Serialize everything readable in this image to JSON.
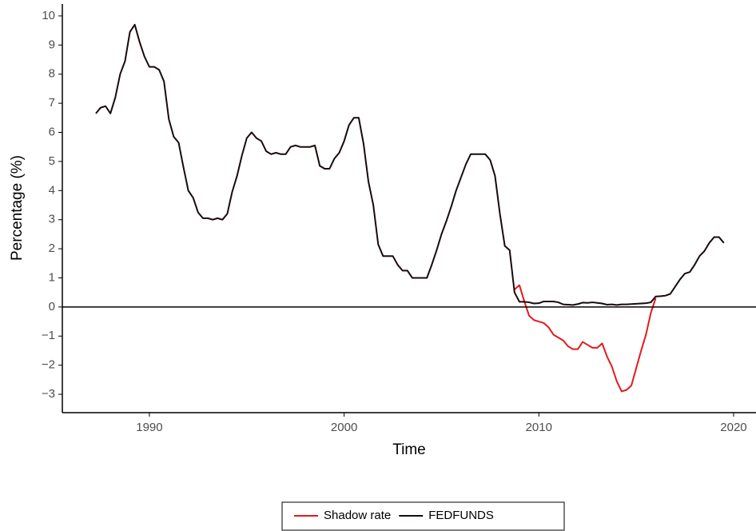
{
  "chart_data": {
    "type": "line",
    "x_label": "Time",
    "y_label": "Percentage (%)",
    "x": [
      1987.25,
      1987.5,
      1987.75,
      1988,
      1988.25,
      1988.5,
      1988.75,
      1989,
      1989.25,
      1989.5,
      1989.75,
      1990,
      1990.25,
      1990.5,
      1990.75,
      1991,
      1991.25,
      1991.5,
      1991.75,
      1992,
      1992.25,
      1992.5,
      1992.75,
      1993,
      1993.25,
      1993.5,
      1993.75,
      1994,
      1994.25,
      1994.5,
      1994.75,
      1995,
      1995.25,
      1995.5,
      1995.75,
      1996,
      1996.25,
      1996.5,
      1996.75,
      1997,
      1997.25,
      1997.5,
      1997.75,
      1998,
      1998.25,
      1998.5,
      1998.75,
      1999,
      1999.25,
      1999.5,
      1999.75,
      2000,
      2000.25,
      2000.5,
      2000.75,
      2001,
      2001.25,
      2001.5,
      2001.75,
      2002,
      2002.25,
      2002.5,
      2002.75,
      2003,
      2003.25,
      2003.5,
      2003.75,
      2004,
      2004.25,
      2004.5,
      2004.75,
      2005,
      2005.25,
      2005.5,
      2005.75,
      2006,
      2006.25,
      2006.5,
      2006.75,
      2007,
      2007.25,
      2007.5,
      2007.75,
      2008,
      2008.25,
      2008.5,
      2008.75,
      2009,
      2009.25,
      2009.5,
      2009.75,
      2010,
      2010.25,
      2010.5,
      2010.75,
      2011,
      2011.25,
      2011.5,
      2011.75,
      2012,
      2012.25,
      2012.5,
      2012.75,
      2013,
      2013.25,
      2013.5,
      2013.75,
      2014,
      2014.25,
      2014.5,
      2014.75,
      2015,
      2015.25,
      2015.5,
      2015.75,
      2016,
      2016.25,
      2016.5,
      2016.75,
      2017,
      2017.25,
      2017.5,
      2017.75,
      2018,
      2018.25,
      2018.5,
      2018.75,
      2019,
      2019.25,
      2019.5
    ],
    "series": [
      {
        "name": "Shadow rate",
        "color": "#e41a1c",
        "values": [
          null,
          null,
          null,
          null,
          null,
          null,
          null,
          null,
          null,
          null,
          null,
          null,
          null,
          null,
          null,
          null,
          null,
          null,
          null,
          null,
          null,
          null,
          null,
          null,
          null,
          null,
          null,
          null,
          null,
          null,
          null,
          null,
          null,
          null,
          null,
          null,
          null,
          null,
          null,
          null,
          null,
          null,
          null,
          null,
          null,
          null,
          null,
          null,
          null,
          null,
          null,
          null,
          null,
          null,
          null,
          null,
          null,
          null,
          null,
          null,
          null,
          null,
          null,
          null,
          null,
          null,
          null,
          null,
          null,
          null,
          null,
          null,
          null,
          null,
          null,
          null,
          null,
          null,
          null,
          null,
          null,
          null,
          null,
          null,
          null,
          null,
          0.6,
          0.75,
          0.2,
          -0.3,
          -0.45,
          -0.5,
          -0.55,
          -0.7,
          -0.95,
          -1.05,
          -1.15,
          -1.35,
          -1.45,
          -1.45,
          -1.2,
          -1.3,
          -1.4,
          -1.4,
          -1.25,
          -1.7,
          -2.05,
          -2.55,
          -2.9,
          -2.85,
          -2.7,
          -2.1,
          -1.5,
          -0.95,
          -0.2,
          0.3,
          null,
          null,
          null,
          null,
          null,
          null,
          null,
          null,
          null,
          null,
          null,
          null,
          null,
          null
        ]
      },
      {
        "name": "FEDFUNDS",
        "color": "#1a0a0a",
        "values": [
          6.65,
          6.85,
          6.9,
          6.65,
          7.2,
          8.0,
          8.45,
          9.45,
          9.7,
          9.1,
          8.6,
          8.25,
          8.25,
          8.15,
          7.75,
          6.45,
          5.85,
          5.65,
          4.8,
          4.0,
          3.75,
          3.25,
          3.05,
          3.05,
          3.0,
          3.05,
          3.0,
          3.2,
          3.95,
          4.5,
          5.2,
          5.8,
          6.0,
          5.8,
          5.7,
          5.35,
          5.25,
          5.3,
          5.25,
          5.25,
          5.5,
          5.55,
          5.5,
          5.5,
          5.5,
          5.55,
          4.85,
          4.75,
          4.75,
          5.1,
          5.3,
          5.7,
          6.25,
          6.5,
          6.5,
          5.6,
          4.3,
          3.5,
          2.15,
          1.75,
          1.75,
          1.75,
          1.45,
          1.25,
          1.25,
          1.0,
          1.0,
          1.0,
          1.0,
          1.45,
          1.95,
          2.5,
          2.95,
          3.45,
          4.0,
          4.45,
          4.9,
          5.25,
          5.25,
          5.25,
          5.25,
          5.05,
          4.5,
          3.2,
          2.1,
          1.95,
          0.5,
          0.18,
          0.18,
          0.16,
          0.12,
          0.13,
          0.19,
          0.19,
          0.19,
          0.16,
          0.09,
          0.08,
          0.07,
          0.1,
          0.15,
          0.14,
          0.16,
          0.14,
          0.12,
          0.08,
          0.09,
          0.07,
          0.09,
          0.09,
          0.1,
          0.11,
          0.12,
          0.13,
          0.16,
          0.36,
          0.37,
          0.39,
          0.45,
          0.7,
          0.95,
          1.15,
          1.2,
          1.45,
          1.75,
          1.92,
          2.2,
          2.4,
          2.4,
          2.2
        ]
      }
    ],
    "hline": 0,
    "xlim": [
      1985.53,
      2021.15
    ],
    "xticks": [
      1990,
      2000,
      2010,
      2020
    ],
    "ylim": [
      -3.63,
      10.41
    ],
    "yticks": [
      {
        "value": -3,
        "label": "−3"
      },
      {
        "value": -2,
        "label": "−2"
      },
      {
        "value": -1,
        "label": "−1"
      },
      0,
      1,
      2,
      3,
      4,
      5,
      6,
      7,
      8,
      9,
      10
    ],
    "grid": false,
    "legend": "bottom"
  }
}
